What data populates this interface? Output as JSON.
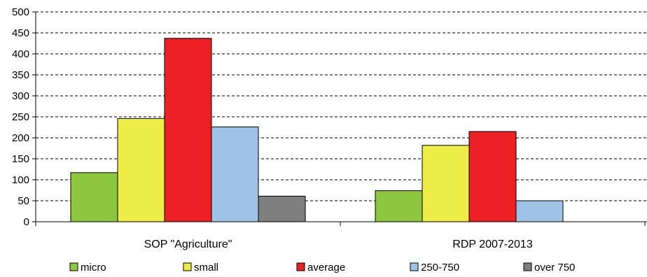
{
  "chart_data": {
    "type": "bar",
    "categories": [
      "SOP \"Agriculture\"",
      "RDP 2007-2013"
    ],
    "series": [
      {
        "name": "micro",
        "color": "#8dc63f",
        "values": [
          117,
          74
        ]
      },
      {
        "name": "small",
        "color": "#eded47",
        "values": [
          246,
          182
        ]
      },
      {
        "name": "average",
        "color": "#ed2024",
        "values": [
          437,
          215
        ]
      },
      {
        "name": "250-750",
        "color": "#9fc3e7",
        "values": [
          226,
          50
        ]
      },
      {
        "name": "over 750",
        "color": "#7f7f7f",
        "values": [
          61,
          0
        ]
      }
    ],
    "title": "",
    "xlabel": "",
    "ylabel": "",
    "ylim": [
      0,
      500
    ],
    "yticks": [
      "0",
      "50",
      "100",
      "150",
      "200",
      "250",
      "300",
      "350",
      "400",
      "450",
      "500"
    ],
    "grid": true,
    "legend_position": "bottom"
  }
}
